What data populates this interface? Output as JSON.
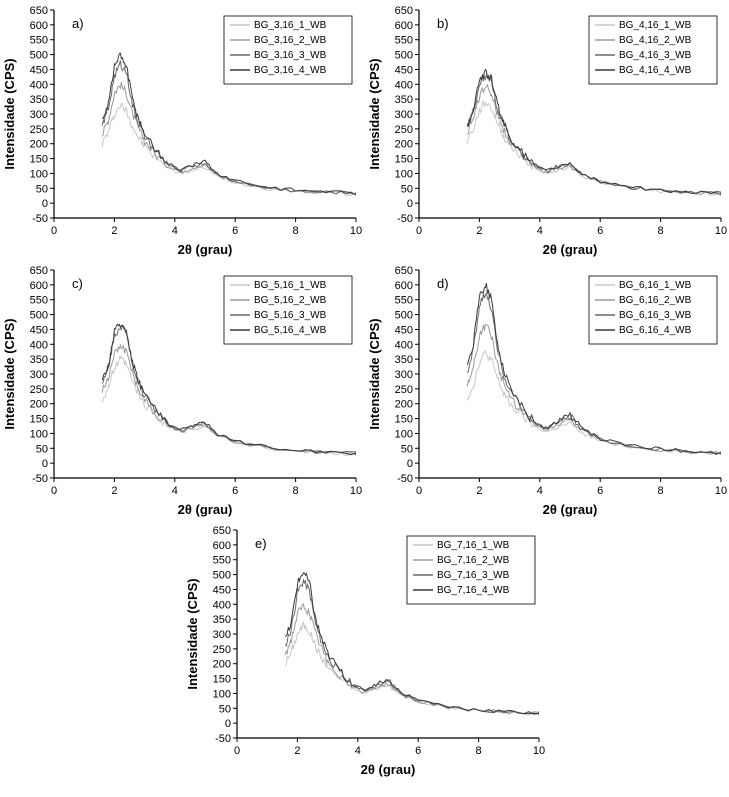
{
  "global": {
    "xlabel": "2θ (grau)",
    "ylabel": "Intensidade (CPS)",
    "xlim": [
      0,
      10
    ],
    "ylim": [
      -50,
      650
    ],
    "xtick_step": 2,
    "ytick_step": 50,
    "line_width": 1,
    "background_color": "#ffffff",
    "axis_color": "#000000",
    "tick_fontsize": 11,
    "label_fontsize": 13,
    "panel_label_fontsize": 13,
    "legend_fontsize": 10,
    "legend_border_color": "#000000",
    "legend_bg": "#ffffff",
    "series_colors": [
      "#c8c8c8",
      "#9b9b9b",
      "#6a6a6a",
      "#3a3a3a"
    ]
  },
  "panels": [
    {
      "key": "a",
      "label": "a)",
      "legend": [
        "BG_3,16_1_WB",
        "BG_3,16_2_WB",
        "BG_3,16_3_WB",
        "BG_3,16_4_WB"
      ],
      "series": [
        {
          "x": [
            1.6,
            1.8,
            2.0,
            2.2,
            2.4,
            2.6,
            2.8,
            3.0,
            3.4,
            3.8,
            4.2,
            4.6,
            5.0,
            5.4,
            6.0,
            7.0,
            8.0,
            9.0,
            10.0
          ],
          "y": [
            200,
            240,
            300,
            330,
            310,
            260,
            220,
            190,
            150,
            120,
            100,
            110,
            120,
            90,
            70,
            50,
            40,
            35,
            30
          ]
        },
        {
          "x": [
            1.6,
            1.8,
            2.0,
            2.2,
            2.4,
            2.6,
            2.8,
            3.0,
            3.4,
            3.8,
            4.2,
            4.6,
            5.0,
            5.4,
            6.0,
            7.0,
            8.0,
            9.0,
            10.0
          ],
          "y": [
            230,
            280,
            370,
            400,
            370,
            300,
            250,
            210,
            160,
            125,
            105,
            120,
            130,
            95,
            72,
            52,
            42,
            36,
            32
          ]
        },
        {
          "x": [
            1.6,
            1.8,
            2.0,
            2.2,
            2.4,
            2.6,
            2.8,
            3.0,
            3.4,
            3.8,
            4.2,
            4.6,
            5.0,
            5.4,
            6.0,
            7.0,
            8.0,
            9.0,
            10.0
          ],
          "y": [
            260,
            320,
            430,
            470,
            440,
            330,
            270,
            225,
            170,
            130,
            108,
            125,
            135,
            98,
            74,
            54,
            43,
            37,
            33
          ]
        },
        {
          "x": [
            1.6,
            1.8,
            2.0,
            2.2,
            2.4,
            2.6,
            2.8,
            3.0,
            3.4,
            3.8,
            4.2,
            4.6,
            5.0,
            5.4,
            6.0,
            7.0,
            8.0,
            9.0,
            10.0
          ],
          "y": [
            280,
            340,
            460,
            500,
            460,
            350,
            285,
            235,
            175,
            132,
            110,
            128,
            140,
            100,
            75,
            55,
            44,
            38,
            33
          ]
        }
      ]
    },
    {
      "key": "b",
      "label": "b)",
      "legend": [
        "BG_4,16_1_WB",
        "BG_4,16_2_WB",
        "BG_4,16_3_WB",
        "BG_4,16_4_WB"
      ],
      "series": [
        {
          "x": [
            1.6,
            1.8,
            2.0,
            2.2,
            2.4,
            2.6,
            2.8,
            3.0,
            3.4,
            3.8,
            4.2,
            4.6,
            5.0,
            5.4,
            6.0,
            7.0,
            8.0,
            9.0,
            10.0
          ],
          "y": [
            210,
            250,
            310,
            340,
            320,
            270,
            225,
            195,
            155,
            122,
            100,
            112,
            122,
            92,
            70,
            50,
            40,
            35,
            30
          ]
        },
        {
          "x": [
            1.6,
            1.8,
            2.0,
            2.2,
            2.4,
            2.6,
            2.8,
            3.0,
            3.4,
            3.8,
            4.2,
            4.6,
            5.0,
            5.4,
            6.0,
            7.0,
            8.0,
            9.0,
            10.0
          ],
          "y": [
            235,
            285,
            360,
            395,
            368,
            300,
            250,
            210,
            160,
            126,
            104,
            118,
            128,
            95,
            72,
            52,
            42,
            36,
            32
          ]
        },
        {
          "x": [
            1.6,
            1.8,
            2.0,
            2.2,
            2.4,
            2.6,
            2.8,
            3.0,
            3.4,
            3.8,
            4.2,
            4.6,
            5.0,
            5.4,
            6.0,
            7.0,
            8.0,
            9.0,
            10.0
          ],
          "y": [
            255,
            310,
            405,
            430,
            410,
            320,
            265,
            220,
            168,
            128,
            106,
            122,
            132,
            97,
            73,
            53,
            43,
            37,
            32
          ]
        },
        {
          "x": [
            1.6,
            1.8,
            2.0,
            2.2,
            2.4,
            2.6,
            2.8,
            3.0,
            3.4,
            3.8,
            4.2,
            4.6,
            5.0,
            5.4,
            6.0,
            7.0,
            8.0,
            9.0,
            10.0
          ],
          "y": [
            260,
            320,
            415,
            440,
            420,
            330,
            270,
            225,
            170,
            130,
            107,
            124,
            134,
            98,
            74,
            54,
            43,
            37,
            33
          ]
        }
      ]
    },
    {
      "key": "c",
      "label": "c)",
      "legend": [
        "BG_5,16_1_WB",
        "BG_5,16_2_WB",
        "BG_5,16_3_WB",
        "BG_5,16_4_WB"
      ],
      "series": [
        {
          "x": [
            1.6,
            1.8,
            2.0,
            2.2,
            2.4,
            2.6,
            2.8,
            3.0,
            3.4,
            3.8,
            4.2,
            4.6,
            5.0,
            5.4,
            6.0,
            7.0,
            8.0,
            9.0,
            10.0
          ],
          "y": [
            215,
            255,
            320,
            350,
            330,
            275,
            230,
            198,
            158,
            124,
            103,
            115,
            125,
            94,
            71,
            51,
            41,
            35,
            30
          ]
        },
        {
          "x": [
            1.6,
            1.8,
            2.0,
            2.2,
            2.4,
            2.6,
            2.8,
            3.0,
            3.4,
            3.8,
            4.2,
            4.6,
            5.0,
            5.4,
            6.0,
            7.0,
            8.0,
            9.0,
            10.0
          ],
          "y": [
            240,
            290,
            370,
            400,
            375,
            305,
            252,
            213,
            163,
            127,
            105,
            120,
            130,
            96,
            72,
            52,
            42,
            36,
            32
          ]
        },
        {
          "x": [
            1.6,
            1.8,
            2.0,
            2.2,
            2.4,
            2.6,
            2.8,
            3.0,
            3.4,
            3.8,
            4.2,
            4.6,
            5.0,
            5.4,
            6.0,
            7.0,
            8.0,
            9.0,
            10.0
          ],
          "y": [
            265,
            325,
            430,
            460,
            435,
            335,
            272,
            227,
            172,
            130,
            108,
            125,
            135,
            98,
            74,
            54,
            43,
            37,
            33
          ]
        },
        {
          "x": [
            1.6,
            1.8,
            2.0,
            2.2,
            2.4,
            2.6,
            2.8,
            3.0,
            3.4,
            3.8,
            4.2,
            4.6,
            5.0,
            5.4,
            6.0,
            7.0,
            8.0,
            9.0,
            10.0
          ],
          "y": [
            270,
            330,
            440,
            470,
            445,
            340,
            278,
            232,
            175,
            132,
            110,
            128,
            138,
            100,
            75,
            55,
            44,
            38,
            33
          ]
        }
      ]
    },
    {
      "key": "d",
      "label": "d)",
      "legend": [
        "BG_6,16_1_WB",
        "BG_6,16_2_WB",
        "BG_6,16_3_WB",
        "BG_6,16_4_WB"
      ],
      "series": [
        {
          "x": [
            1.6,
            1.8,
            2.0,
            2.2,
            2.4,
            2.6,
            2.8,
            3.0,
            3.4,
            3.8,
            4.2,
            4.6,
            5.0,
            5.4,
            6.0,
            7.0,
            8.0,
            9.0,
            10.0
          ],
          "y": [
            220,
            260,
            340,
            370,
            345,
            285,
            235,
            200,
            160,
            125,
            105,
            120,
            135,
            100,
            75,
            55,
            44,
            38,
            33
          ]
        },
        {
          "x": [
            1.6,
            1.8,
            2.0,
            2.2,
            2.4,
            2.6,
            2.8,
            3.0,
            3.4,
            3.8,
            4.2,
            4.6,
            5.0,
            5.4,
            6.0,
            7.0,
            8.0,
            9.0,
            10.0
          ],
          "y": [
            260,
            320,
            430,
            465,
            430,
            330,
            270,
            225,
            172,
            130,
            110,
            130,
            148,
            108,
            78,
            56,
            45,
            38,
            34
          ]
        },
        {
          "x": [
            1.6,
            1.8,
            2.0,
            2.2,
            2.4,
            2.6,
            2.8,
            3.0,
            3.4,
            3.8,
            4.2,
            4.6,
            5.0,
            5.4,
            6.0,
            7.0,
            8.0,
            9.0,
            10.0
          ],
          "y": [
            300,
            380,
            530,
            570,
            520,
            380,
            300,
            250,
            185,
            138,
            115,
            138,
            158,
            112,
            80,
            58,
            46,
            39,
            34
          ]
        },
        {
          "x": [
            1.6,
            1.8,
            2.0,
            2.2,
            2.4,
            2.6,
            2.8,
            3.0,
            3.4,
            3.8,
            4.2,
            4.6,
            5.0,
            5.4,
            6.0,
            7.0,
            8.0,
            9.0,
            10.0
          ],
          "y": [
            320,
            400,
            560,
            600,
            550,
            400,
            315,
            260,
            190,
            140,
            118,
            142,
            165,
            116,
            82,
            60,
            47,
            40,
            35
          ]
        }
      ]
    },
    {
      "key": "e",
      "label": "e)",
      "legend": [
        "BG_7,16_1_WB",
        "BG_7,16_2_WB",
        "BG_7,16_3_WB",
        "BG_7,16_4_WB"
      ],
      "series": [
        {
          "x": [
            1.6,
            1.8,
            2.0,
            2.2,
            2.4,
            2.6,
            2.8,
            3.0,
            3.4,
            3.8,
            4.2,
            4.6,
            5.0,
            5.4,
            6.0,
            7.0,
            8.0,
            9.0,
            10.0
          ],
          "y": [
            200,
            240,
            300,
            330,
            310,
            260,
            220,
            190,
            150,
            120,
            100,
            115,
            128,
            96,
            72,
            52,
            42,
            36,
            31
          ]
        },
        {
          "x": [
            1.6,
            1.8,
            2.0,
            2.2,
            2.4,
            2.6,
            2.8,
            3.0,
            3.4,
            3.8,
            4.2,
            4.6,
            5.0,
            5.4,
            6.0,
            7.0,
            8.0,
            9.0,
            10.0
          ],
          "y": [
            230,
            280,
            365,
            395,
            370,
            300,
            250,
            210,
            160,
            125,
            104,
            120,
            132,
            98,
            74,
            53,
            43,
            37,
            32
          ]
        },
        {
          "x": [
            1.6,
            1.8,
            2.0,
            2.2,
            2.4,
            2.6,
            2.8,
            3.0,
            3.4,
            3.8,
            4.2,
            4.6,
            5.0,
            5.4,
            6.0,
            7.0,
            8.0,
            9.0,
            10.0
          ],
          "y": [
            260,
            320,
            440,
            480,
            445,
            335,
            275,
            228,
            172,
            130,
            108,
            128,
            140,
            102,
            76,
            55,
            44,
            38,
            33
          ]
        },
        {
          "x": [
            1.6,
            1.8,
            2.0,
            2.2,
            2.4,
            2.6,
            2.8,
            3.0,
            3.4,
            3.8,
            4.2,
            4.6,
            5.0,
            5.4,
            6.0,
            7.0,
            8.0,
            9.0,
            10.0
          ],
          "y": [
            280,
            340,
            470,
            510,
            470,
            350,
            285,
            235,
            176,
            133,
            110,
            132,
            148,
            106,
            78,
            56,
            45,
            38,
            34
          ]
        }
      ]
    }
  ]
}
